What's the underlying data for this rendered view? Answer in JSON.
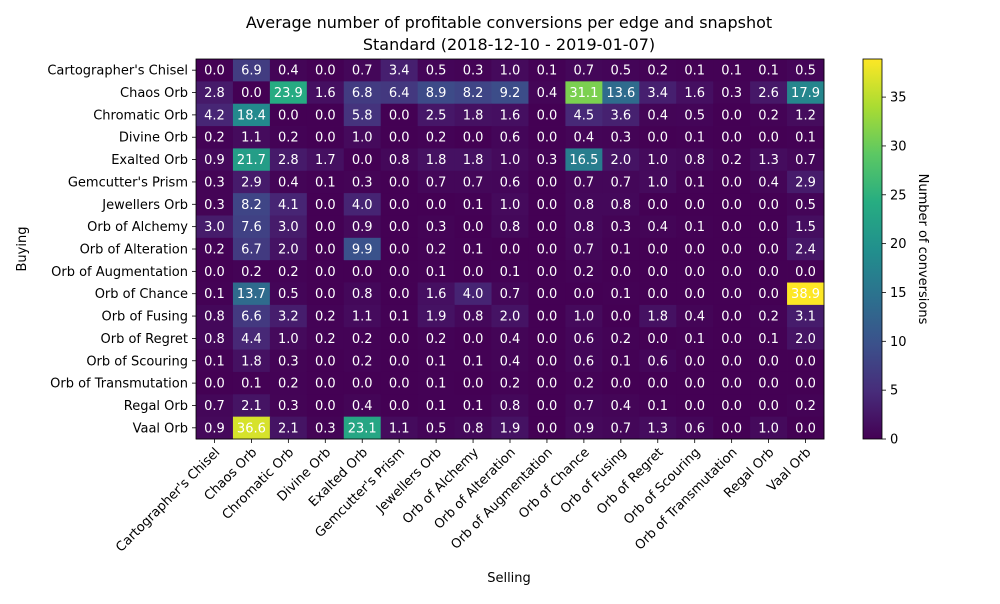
{
  "chart_data": {
    "type": "heatmap",
    "title": "Average number of profitable conversions per edge and snapshot",
    "subtitle": "Standard (2018-12-10 - 2019-01-07)",
    "xlabel": "Selling",
    "ylabel": "Buying",
    "colorbar_label": "Number of conversions",
    "colormap": "viridis",
    "vmin": 0,
    "vmax": 38.9,
    "colorbar_ticks": [
      0,
      5,
      10,
      15,
      20,
      25,
      30,
      35
    ],
    "x_categories": [
      "Cartographer's Chisel",
      "Chaos Orb",
      "Chromatic Orb",
      "Divine Orb",
      "Exalted Orb",
      "Gemcutter's Prism",
      "Jewellers Orb",
      "Orb of Alchemy",
      "Orb of Alteration",
      "Orb of Augmentation",
      "Orb of Chance",
      "Orb of Fusing",
      "Orb of Regret",
      "Orb of Scouring",
      "Orb of Transmutation",
      "Regal Orb",
      "Vaal Orb"
    ],
    "y_categories": [
      "Cartographer's Chisel",
      "Chaos Orb",
      "Chromatic Orb",
      "Divine Orb",
      "Exalted Orb",
      "Gemcutter's Prism",
      "Jewellers Orb",
      "Orb of Alchemy",
      "Orb of Alteration",
      "Orb of Augmentation",
      "Orb of Chance",
      "Orb of Fusing",
      "Orb of Regret",
      "Orb of Scouring",
      "Orb of Transmutation",
      "Regal Orb",
      "Vaal Orb"
    ],
    "values": [
      [
        "0.0",
        "6.9",
        "0.4",
        "0.0",
        "0.7",
        "3.4",
        "0.5",
        "0.3",
        "1.0",
        "0.1",
        "0.7",
        "0.5",
        "0.2",
        "0.1",
        "0.1",
        "0.1",
        "0.5"
      ],
      [
        "2.8",
        "0.0",
        "23.9",
        "1.6",
        "6.8",
        "6.4",
        "8.9",
        "8.2",
        "9.2",
        "0.4",
        "31.1",
        "13.6",
        "3.4",
        "1.6",
        "0.3",
        "2.6",
        "17.9"
      ],
      [
        "4.2",
        "18.4",
        "0.0",
        "0.0",
        "5.8",
        "0.0",
        "2.5",
        "1.8",
        "1.6",
        "0.0",
        "4.5",
        "3.6",
        "0.4",
        "0.5",
        "0.0",
        "0.2",
        "1.2"
      ],
      [
        "0.2",
        "1.1",
        "0.2",
        "0.0",
        "1.0",
        "0.0",
        "0.2",
        "0.0",
        "0.6",
        "0.0",
        "0.4",
        "0.3",
        "0.0",
        "0.1",
        "0.0",
        "0.0",
        "0.1"
      ],
      [
        "0.9",
        "21.7",
        "2.8",
        "1.7",
        "0.0",
        "0.8",
        "1.8",
        "1.8",
        "1.0",
        "0.3",
        "16.5",
        "2.0",
        "1.0",
        "0.8",
        "0.2",
        "1.3",
        "0.7"
      ],
      [
        "0.3",
        "2.9",
        "0.4",
        "0.1",
        "0.3",
        "0.0",
        "0.7",
        "0.7",
        "0.6",
        "0.0",
        "0.7",
        "0.7",
        "1.0",
        "0.1",
        "0.0",
        "0.4",
        "2.9"
      ],
      [
        "0.3",
        "8.2",
        "4.1",
        "0.0",
        "4.0",
        "0.0",
        "0.0",
        "0.1",
        "1.0",
        "0.0",
        "0.8",
        "0.8",
        "0.0",
        "0.0",
        "0.0",
        "0.0",
        "0.5"
      ],
      [
        "3.0",
        "7.6",
        "3.0",
        "0.0",
        "0.9",
        "0.0",
        "0.3",
        "0.0",
        "0.8",
        "0.0",
        "0.8",
        "0.3",
        "0.4",
        "0.1",
        "0.0",
        "0.0",
        "1.5"
      ],
      [
        "0.2",
        "6.7",
        "2.0",
        "0.0",
        "9.9",
        "0.0",
        "0.2",
        "0.1",
        "0.0",
        "0.0",
        "0.7",
        "0.1",
        "0.0",
        "0.0",
        "0.0",
        "0.0",
        "2.4"
      ],
      [
        "0.0",
        "0.2",
        "0.2",
        "0.0",
        "0.0",
        "0.0",
        "0.1",
        "0.0",
        "0.1",
        "0.0",
        "0.2",
        "0.0",
        "0.0",
        "0.0",
        "0.0",
        "0.0",
        "0.0"
      ],
      [
        "0.1",
        "13.7",
        "0.5",
        "0.0",
        "0.8",
        "0.0",
        "1.6",
        "4.0",
        "0.7",
        "0.0",
        "0.0",
        "0.1",
        "0.0",
        "0.0",
        "0.0",
        "0.0",
        "38.9"
      ],
      [
        "0.8",
        "6.6",
        "3.2",
        "0.2",
        "1.1",
        "0.1",
        "1.9",
        "0.8",
        "2.0",
        "0.0",
        "1.0",
        "0.0",
        "1.8",
        "0.4",
        "0.0",
        "0.2",
        "3.1"
      ],
      [
        "0.8",
        "4.4",
        "1.0",
        "0.2",
        "0.2",
        "0.0",
        "0.2",
        "0.0",
        "0.4",
        "0.0",
        "0.6",
        "0.2",
        "0.0",
        "0.1",
        "0.0",
        "0.1",
        "2.0"
      ],
      [
        "0.1",
        "1.8",
        "0.3",
        "0.0",
        "0.2",
        "0.0",
        "0.1",
        "0.1",
        "0.4",
        "0.0",
        "0.6",
        "0.1",
        "0.6",
        "0.0",
        "0.0",
        "0.0",
        "0.0"
      ],
      [
        "0.0",
        "0.1",
        "0.2",
        "0.0",
        "0.0",
        "0.0",
        "0.1",
        "0.0",
        "0.2",
        "0.0",
        "0.2",
        "0.0",
        "0.0",
        "0.0",
        "0.0",
        "0.0",
        "0.0"
      ],
      [
        "0.7",
        "2.1",
        "0.3",
        "0.0",
        "0.4",
        "0.0",
        "0.1",
        "0.1",
        "0.8",
        "0.0",
        "0.7",
        "0.4",
        "0.1",
        "0.0",
        "0.0",
        "0.0",
        "0.2"
      ],
      [
        "0.9",
        "36.6",
        "2.1",
        "0.3",
        "23.1",
        "1.1",
        "0.5",
        "0.8",
        "1.9",
        "0.0",
        "0.9",
        "0.7",
        "1.3",
        "0.6",
        "0.0",
        "1.0",
        "0.0"
      ]
    ]
  }
}
